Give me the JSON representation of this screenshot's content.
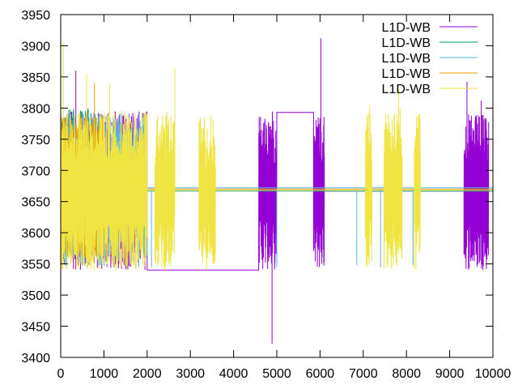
{
  "chart_data": {
    "type": "line",
    "title": "",
    "xlabel": "",
    "ylabel": "",
    "xlim": [
      0,
      10000
    ],
    "ylim": [
      3400,
      3950
    ],
    "xticks": [
      0,
      1000,
      2000,
      3000,
      4000,
      5000,
      6000,
      7000,
      8000,
      9000,
      10000
    ],
    "yticks": [
      3400,
      3450,
      3500,
      3550,
      3600,
      3650,
      3700,
      3750,
      3800,
      3850,
      3900,
      3950
    ],
    "grid": false,
    "legend_position": "top-right",
    "series": [
      {
        "name": "L1D-WB",
        "color": "#9400d3",
        "segments": [
          {
            "type": "noise",
            "x": [
              0,
              2000
            ],
            "low": 3540,
            "high": 3795
          },
          {
            "type": "flat",
            "x": [
              2000,
              4580
            ],
            "y": 3540
          },
          {
            "type": "noise",
            "x": [
              4580,
              4830
            ],
            "low": 3540,
            "high": 3792
          },
          {
            "type": "noise",
            "x": [
              4830,
              5000
            ],
            "low": 3540,
            "high": 3795
          },
          {
            "type": "flat",
            "x": [
              5000,
              5850
            ],
            "y": 3793
          },
          {
            "type": "noise",
            "x": [
              5850,
              6100
            ],
            "low": 3540,
            "high": 3793
          },
          {
            "type": "flat",
            "x": [
              6100,
              9330
            ],
            "y": 3667
          },
          {
            "type": "noise",
            "x": [
              9330,
              9900
            ],
            "low": 3540,
            "high": 3790
          },
          {
            "type": "flat",
            "x": [
              9900,
              10000
            ],
            "y": 3667
          }
        ],
        "spikes": [
          {
            "x": 350,
            "y": 3860
          },
          {
            "x": 6020,
            "y": 3912
          },
          {
            "x": 4890,
            "y": 3422
          },
          {
            "x": 9400,
            "y": 3842
          },
          {
            "x": 9730,
            "y": 3812
          }
        ]
      },
      {
        "name": "L1D-WB",
        "color": "#009e73",
        "segments": [
          {
            "type": "noise",
            "x": [
              0,
              800
            ],
            "low": 3560,
            "high": 3800
          },
          {
            "type": "flat",
            "x": [
              800,
              10000
            ],
            "y": 3667
          }
        ],
        "spikes": []
      },
      {
        "name": "L1D-WB",
        "color": "#56b4e9",
        "segments": [
          {
            "type": "noise",
            "x": [
              0,
              2000
            ],
            "low": 3545,
            "high": 3792
          },
          {
            "type": "flat",
            "x": [
              2000,
              10000
            ],
            "y": 3672
          }
        ],
        "spikes": [
          {
            "x": 2100,
            "y": 3545
          },
          {
            "x": 5000,
            "y": 3545
          },
          {
            "x": 6850,
            "y": 3548
          },
          {
            "x": 7400,
            "y": 3545
          },
          {
            "x": 8150,
            "y": 3548
          }
        ]
      },
      {
        "name": "L1D-WB",
        "color": "#e69f00",
        "segments": [
          {
            "type": "noise",
            "x": [
              0,
              1000
            ],
            "low": 3560,
            "high": 3795
          },
          {
            "type": "flat",
            "x": [
              1000,
              10000
            ],
            "y": 3670
          }
        ],
        "spikes": [
          {
            "x": 780,
            "y": 3840
          }
        ]
      },
      {
        "name": "L1D-WB",
        "color": "#f0e442",
        "segments": [
          {
            "type": "noise",
            "x": [
              0,
              2000
            ],
            "low": 3540,
            "high": 3795
          },
          {
            "type": "flat",
            "x": [
              2000,
              2180
            ],
            "y": 3668
          },
          {
            "type": "noise",
            "x": [
              2180,
              2640
            ],
            "low": 3540,
            "high": 3795
          },
          {
            "type": "flat",
            "x": [
              2640,
              3200
            ],
            "y": 3668
          },
          {
            "type": "noise",
            "x": [
              3200,
              3580
            ],
            "low": 3540,
            "high": 3790
          },
          {
            "type": "flat",
            "x": [
              3580,
              7050
            ],
            "y": 3668
          },
          {
            "type": "noise",
            "x": [
              7050,
              7200
            ],
            "low": 3540,
            "high": 3800
          },
          {
            "type": "flat",
            "x": [
              7200,
              7480
            ],
            "y": 3668
          },
          {
            "type": "noise",
            "x": [
              7480,
              7900
            ],
            "low": 3540,
            "high": 3800
          },
          {
            "type": "flat",
            "x": [
              7900,
              8180
            ],
            "y": 3668
          },
          {
            "type": "noise",
            "x": [
              8180,
              8320
            ],
            "low": 3540,
            "high": 3795
          },
          {
            "type": "flat",
            "x": [
              8320,
              10000
            ],
            "y": 3668
          }
        ],
        "spikes": [
          {
            "x": 60,
            "y": 3905
          },
          {
            "x": 600,
            "y": 3855
          },
          {
            "x": 1130,
            "y": 3840
          },
          {
            "x": 2640,
            "y": 3865
          },
          {
            "x": 7150,
            "y": 3805
          },
          {
            "x": 7820,
            "y": 3830
          }
        ]
      }
    ]
  }
}
